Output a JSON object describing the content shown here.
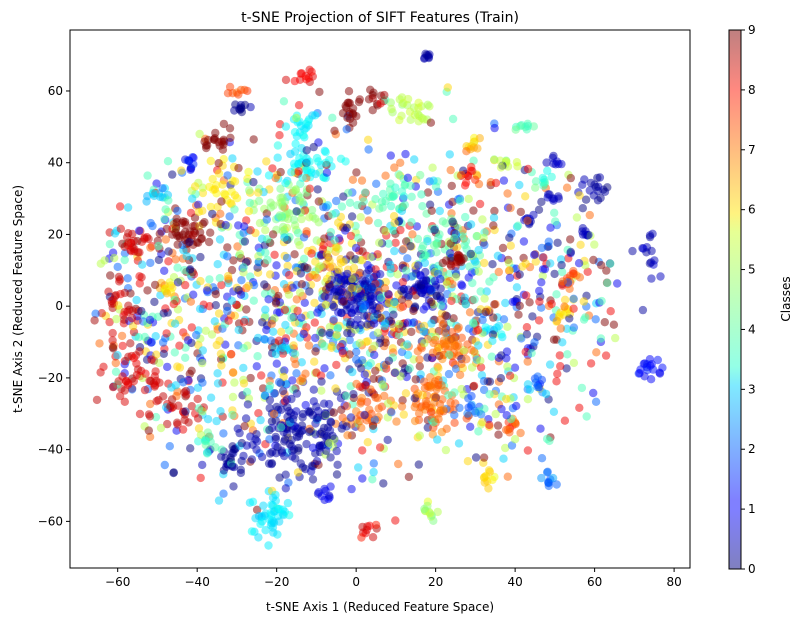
{
  "chart_data": {
    "type": "scatter",
    "title": "t-SNE Projection of SIFT Features (Train)",
    "xlabel": "t-SNE Axis 1 (Reduced Feature Space)",
    "ylabel": "t-SNE Axis 2 (Reduced Feature Space)",
    "xlim": [
      -72,
      84
    ],
    "ylim": [
      -73,
      77
    ],
    "xticks": [
      -60,
      -40,
      -20,
      0,
      20,
      40,
      60,
      80
    ],
    "yticks": [
      -60,
      -40,
      -20,
      0,
      20,
      40,
      60
    ],
    "grid": false,
    "marker_alpha": 0.5,
    "colormap": "jet",
    "colorbar": {
      "label": "Classes",
      "range": [
        0,
        9
      ],
      "ticks": [
        0,
        1,
        2,
        3,
        4,
        5,
        6,
        7,
        8,
        9
      ]
    },
    "clusters": [
      {
        "x": 0,
        "y": 3,
        "sx": 4,
        "sy": 4,
        "class": 0.5,
        "n": 110
      },
      {
        "x": 17,
        "y": 5,
        "sx": 2.5,
        "sy": 2.5,
        "class": 0.5,
        "n": 45
      },
      {
        "x": -15,
        "y": -35,
        "sx": 7,
        "sy": 6,
        "class": 0.3,
        "n": 150
      },
      {
        "x": -31,
        "y": -42,
        "sx": 2,
        "sy": 2,
        "class": 0.2,
        "n": 25
      },
      {
        "x": 60,
        "y": 33,
        "sx": 2,
        "sy": 2,
        "class": 0.3,
        "n": 18
      },
      {
        "x": 73,
        "y": 15,
        "sx": 1.5,
        "sy": 4,
        "class": 0.4,
        "n": 16
      },
      {
        "x": 73,
        "y": -17,
        "sx": 2,
        "sy": 1.5,
        "class": 1.2,
        "n": 18
      },
      {
        "x": 43,
        "y": 24,
        "sx": 1,
        "sy": 1,
        "class": 0.5,
        "n": 8
      },
      {
        "x": 50,
        "y": 40,
        "sx": 1,
        "sy": 1,
        "class": 0.5,
        "n": 8
      },
      {
        "x": 50,
        "y": 30,
        "sx": 1,
        "sy": 1,
        "class": 0.5,
        "n": 8
      },
      {
        "x": 58,
        "y": 20,
        "sx": 1,
        "sy": 1,
        "class": 0.5,
        "n": 8
      },
      {
        "x": 18,
        "y": 69.5,
        "sx": 1,
        "sy": 0.5,
        "class": 0.3,
        "n": 8
      },
      {
        "x": -22,
        "y": -58,
        "sx": 3,
        "sy": 3,
        "class": 3.2,
        "n": 45
      },
      {
        "x": -12,
        "y": 40,
        "sx": 4,
        "sy": 3,
        "class": 3.3,
        "n": 45
      },
      {
        "x": -14,
        "y": 51,
        "sx": 2,
        "sy": 2,
        "class": 3.2,
        "n": 18
      },
      {
        "x": -18,
        "y": 27,
        "sx": 4,
        "sy": 4,
        "class": 4.6,
        "n": 55
      },
      {
        "x": 22,
        "y": 18,
        "sx": 5,
        "sy": 5,
        "class": 4.1,
        "n": 50
      },
      {
        "x": 10,
        "y": 30,
        "sx": 4,
        "sy": 4,
        "class": 4.0,
        "n": 35
      },
      {
        "x": 42,
        "y": 50,
        "sx": 1.5,
        "sy": 0.5,
        "class": 4.0,
        "n": 8
      },
      {
        "x": 20,
        "y": -27,
        "sx": 3,
        "sy": 4,
        "class": 7.0,
        "n": 55
      },
      {
        "x": 23,
        "y": -12,
        "sx": 3,
        "sy": 3,
        "class": 7.0,
        "n": 45
      },
      {
        "x": 2,
        "y": -30,
        "sx": 3,
        "sy": 3,
        "class": 7.0,
        "n": 30
      },
      {
        "x": -42,
        "y": 20,
        "sx": 3,
        "sy": 3,
        "class": 9.0,
        "n": 45
      },
      {
        "x": -35,
        "y": 45,
        "sx": 2,
        "sy": 2,
        "class": 9.0,
        "n": 20
      },
      {
        "x": -1,
        "y": 54,
        "sx": 2,
        "sy": 2,
        "class": 9.0,
        "n": 20
      },
      {
        "x": 26,
        "y": 13,
        "sx": 1.5,
        "sy": 1.5,
        "class": 8.9,
        "n": 15
      },
      {
        "x": -14,
        "y": 64,
        "sx": 1.5,
        "sy": 1,
        "class": 8.0,
        "n": 12
      },
      {
        "x": -30,
        "y": 60,
        "sx": 1,
        "sy": 0.5,
        "class": 7.2,
        "n": 8
      },
      {
        "x": -56,
        "y": 18,
        "sx": 2,
        "sy": 2,
        "class": 8.3,
        "n": 25
      },
      {
        "x": -55,
        "y": -20,
        "sx": 4,
        "sy": 4,
        "class": 8.2,
        "n": 40
      },
      {
        "x": -45,
        "y": -30,
        "sx": 4,
        "sy": 3,
        "class": 8.3,
        "n": 30
      },
      {
        "x": -60,
        "y": 0,
        "sx": 3,
        "sy": 4,
        "class": 8.3,
        "n": 30
      },
      {
        "x": -33,
        "y": 32,
        "sx": 4,
        "sy": 4,
        "class": 5.8,
        "n": 35
      },
      {
        "x": -5,
        "y": 10,
        "sx": 4,
        "sy": 4,
        "class": 6.0,
        "n": 30
      },
      {
        "x": 14,
        "y": 55,
        "sx": 3,
        "sy": 3,
        "class": 5.0,
        "n": 25
      },
      {
        "x": 0,
        "y": 0,
        "sx": 28,
        "sy": 22,
        "class": -1,
        "n": 1200
      },
      {
        "x": 45,
        "y": 0,
        "sx": 15,
        "sy": 25,
        "class": -1,
        "n": 180
      },
      {
        "x": -45,
        "y": 0,
        "sx": 12,
        "sy": 22,
        "class": -1,
        "n": 200
      }
    ]
  }
}
